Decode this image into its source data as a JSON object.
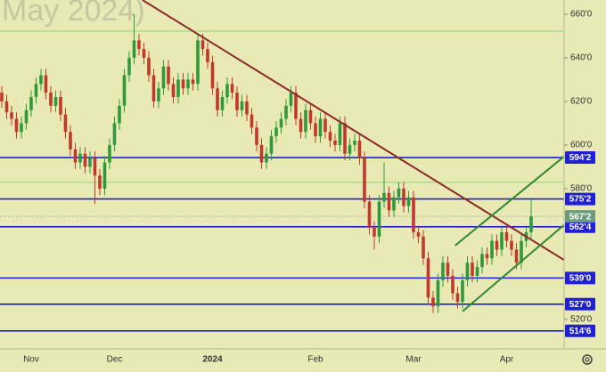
{
  "chart_data": {
    "type": "candlestick",
    "title": "May 2024)",
    "categories": [
      null,
      null,
      null,
      null,
      null,
      null,
      "Nov",
      null,
      null,
      null,
      null,
      null,
      null,
      null,
      null,
      null,
      null,
      null,
      null,
      null,
      null,
      null,
      null,
      "Dec",
      null,
      null,
      null,
      null,
      null,
      null,
      null,
      null,
      null,
      null,
      null,
      null,
      null,
      null,
      null,
      null,
      null,
      null,
      null,
      "2024",
      null,
      null,
      null,
      null,
      null,
      null,
      null,
      null,
      null,
      null,
      null,
      null,
      null,
      null,
      null,
      null,
      null,
      null,
      null,
      null,
      "Feb",
      null,
      null,
      null,
      null,
      null,
      null,
      null,
      null,
      null,
      null,
      null,
      null,
      null,
      null,
      null,
      null,
      null,
      null,
      null,
      "Mar",
      null,
      null,
      null,
      null,
      null,
      null,
      null,
      null,
      null,
      null,
      null,
      null,
      null,
      null,
      null,
      null,
      null,
      null,
      "Apr",
      null,
      null,
      null,
      null,
      null
    ],
    "open": [
      624,
      620,
      615,
      612,
      606,
      610,
      616,
      622,
      628,
      632,
      624,
      618,
      622,
      614,
      606,
      598,
      592,
      596,
      590,
      594,
      586,
      580,
      592,
      600,
      610,
      618,
      632,
      640,
      648,
      644,
      640,
      632,
      620,
      626,
      636,
      628,
      622,
      630,
      626,
      630,
      628,
      648,
      644,
      638,
      626,
      616,
      622,
      628,
      624,
      616,
      620,
      614,
      608,
      600,
      592,
      596,
      604,
      608,
      612,
      618,
      624,
      612,
      606,
      616,
      610,
      604,
      612,
      606,
      602,
      600,
      610,
      596,
      600,
      602,
      594,
      574,
      562,
      558,
      574,
      578,
      570,
      576,
      580,
      572,
      576,
      560,
      558,
      548,
      530,
      526,
      538,
      546,
      540,
      532,
      528,
      538,
      546,
      540,
      544,
      550,
      548,
      556,
      552,
      560,
      556,
      552,
      546,
      556,
      560
    ],
    "high": [
      627,
      623,
      618,
      615,
      613,
      619,
      625,
      631,
      635,
      635,
      627,
      625,
      625,
      617,
      609,
      601,
      599,
      599,
      597,
      597,
      589,
      595,
      603,
      613,
      621,
      635,
      643,
      660,
      651,
      647,
      643,
      635,
      629,
      639,
      639,
      631,
      633,
      633,
      633,
      633,
      651,
      651,
      647,
      641,
      629,
      625,
      631,
      631,
      627,
      623,
      623,
      617,
      611,
      603,
      599,
      607,
      611,
      615,
      621,
      627,
      627,
      615,
      619,
      619,
      613,
      615,
      615,
      609,
      605,
      613,
      613,
      603,
      605,
      605,
      597,
      577,
      565,
      577,
      592,
      581,
      579,
      583,
      583,
      579,
      579,
      563,
      561,
      551,
      533,
      541,
      549,
      549,
      543,
      535,
      541,
      549,
      549,
      547,
      553,
      553,
      559,
      559,
      563,
      563,
      559,
      555,
      559,
      563,
      575
    ],
    "low": [
      617,
      612,
      609,
      603,
      603,
      607,
      613,
      619,
      625,
      621,
      615,
      615,
      611,
      603,
      595,
      589,
      589,
      587,
      587,
      573,
      577,
      577,
      589,
      597,
      607,
      615,
      629,
      637,
      641,
      637,
      629,
      617,
      617,
      623,
      625,
      619,
      619,
      623,
      623,
      625,
      625,
      641,
      635,
      623,
      613,
      613,
      619,
      621,
      613,
      613,
      611,
      605,
      597,
      589,
      589,
      593,
      601,
      605,
      609,
      615,
      609,
      603,
      603,
      607,
      601,
      601,
      603,
      599,
      597,
      597,
      593,
      593,
      597,
      591,
      571,
      559,
      552,
      555,
      571,
      567,
      567,
      573,
      569,
      569,
      557,
      555,
      545,
      527,
      523,
      523,
      535,
      537,
      529,
      525,
      525,
      535,
      537,
      537,
      541,
      545,
      545,
      549,
      549,
      553,
      549,
      543,
      543,
      553,
      557
    ],
    "close": [
      620,
      615,
      612,
      606,
      610,
      616,
      622,
      628,
      632,
      624,
      618,
      622,
      614,
      606,
      598,
      592,
      596,
      590,
      594,
      586,
      580,
      592,
      600,
      610,
      618,
      632,
      640,
      648,
      644,
      640,
      632,
      620,
      626,
      636,
      628,
      622,
      630,
      626,
      630,
      628,
      648,
      644,
      638,
      626,
      616,
      622,
      628,
      624,
      616,
      620,
      614,
      608,
      600,
      592,
      596,
      604,
      608,
      612,
      618,
      624,
      612,
      606,
      616,
      610,
      604,
      612,
      606,
      602,
      600,
      610,
      596,
      600,
      602,
      594,
      574,
      562,
      558,
      574,
      578,
      570,
      576,
      580,
      572,
      576,
      560,
      558,
      548,
      530,
      526,
      538,
      546,
      540,
      532,
      528,
      538,
      546,
      540,
      544,
      550,
      548,
      556,
      552,
      560,
      556,
      552,
      546,
      556,
      560,
      567.25
    ],
    "up_color": "#2e9a3a",
    "down_color": "#c0392b",
    "xlim": [
      -0.36,
      114.73
    ],
    "ylim": [
      506.5,
      666.5
    ],
    "yticks": [
      {
        "value": 520,
        "label": "520'0"
      },
      {
        "value": 580,
        "label": "580'0"
      },
      {
        "value": 600,
        "label": "600'0"
      },
      {
        "value": 620,
        "label": "620'0"
      },
      {
        "value": 640,
        "label": "640'0"
      },
      {
        "value": 660,
        "label": "660'0"
      }
    ],
    "levels": [
      {
        "value": 594.25,
        "label": "594'2",
        "color": "#1f1fd6"
      },
      {
        "value": 575.25,
        "label": "575'2",
        "color": "#1f1fd6"
      },
      {
        "value": 562.5,
        "label": "562'4",
        "color": "#1f1fd6"
      },
      {
        "value": 539,
        "label": "539'0",
        "color": "#1f1fd6"
      },
      {
        "value": 527,
        "label": "527'0",
        "color": "#1f1fd6"
      },
      {
        "value": 514.75,
        "label": "514'6",
        "color": "#1f1fd6"
      }
    ],
    "price_label": {
      "value": 567.25,
      "label": "567'2",
      "color": "#6c9a7c"
    },
    "guides": [
      652.2,
      582.9
    ],
    "guide_color": "#8fd67a",
    "trend_lines": [
      {
        "color": "#8b2a2a",
        "x": [
          28.7,
          114.7
        ],
        "y": [
          666.5,
          547.3
        ]
      },
      {
        "color": "#2f8a2f",
        "x": [
          92.5,
          114.7
        ],
        "y": [
          553.9,
          594.7
        ]
      },
      {
        "color": "#2f8a2f",
        "x": [
          94,
          114.7
        ],
        "y": [
          523.7,
          563.3
        ]
      }
    ]
  }
}
